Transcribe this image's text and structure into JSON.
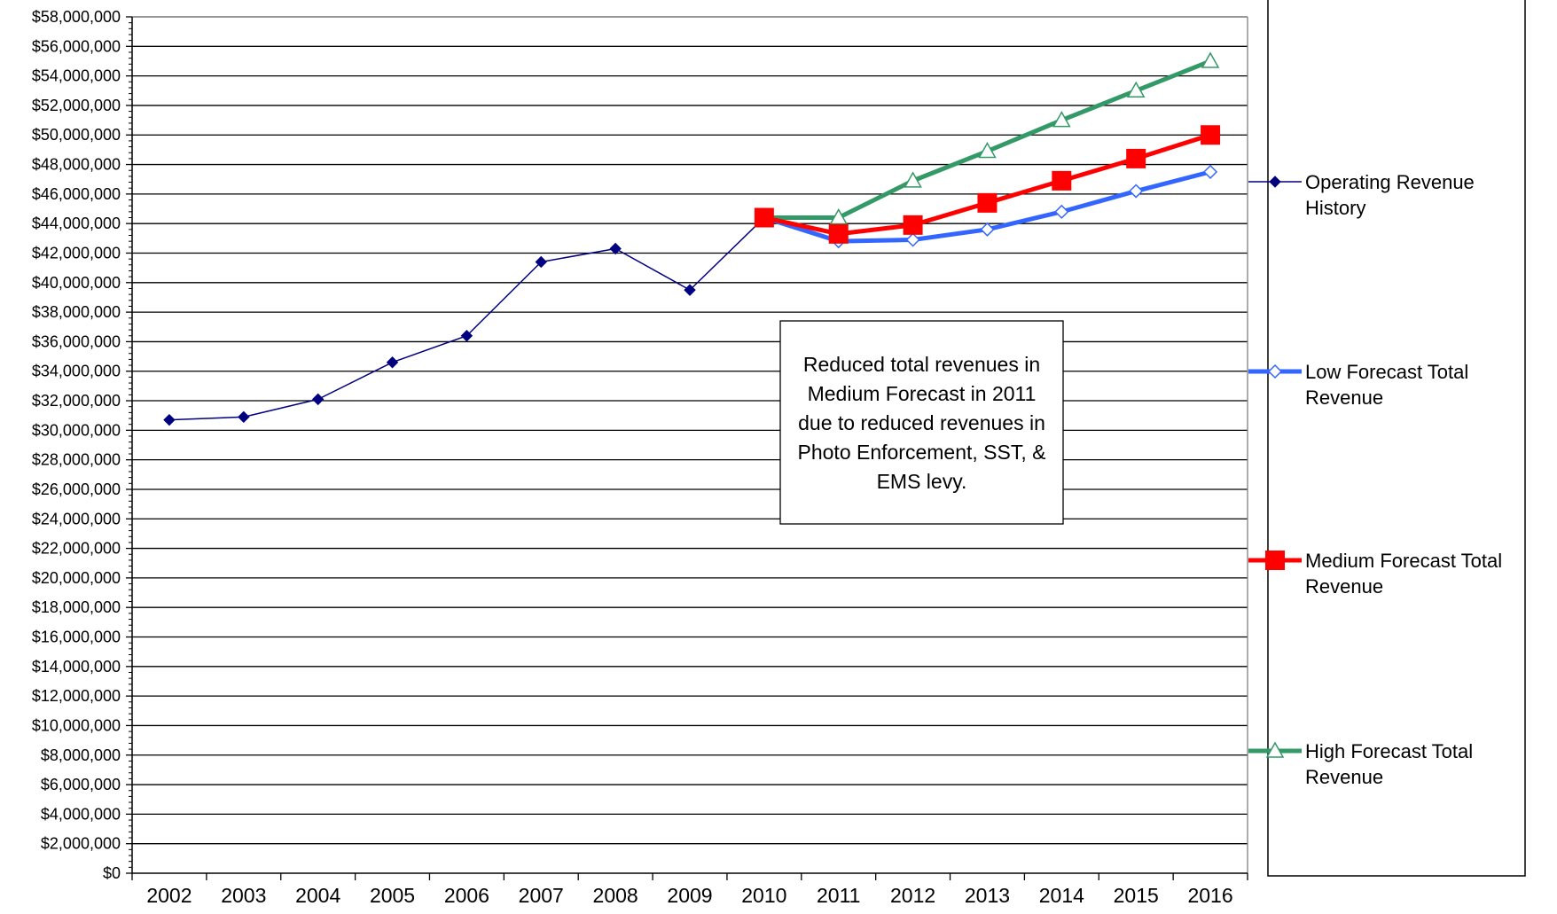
{
  "chart_data": {
    "type": "line",
    "categories": [
      "2002",
      "2003",
      "2004",
      "2005",
      "2006",
      "2007",
      "2008",
      "2009",
      "2010",
      "2011",
      "2012",
      "2013",
      "2014",
      "2015",
      "2016"
    ],
    "ylim": [
      0,
      58000000
    ],
    "y_tick_step": 2000000,
    "y_tick_labels": [
      "$0",
      "$2,000,000",
      "$4,000,000",
      "$6,000,000",
      "$8,000,000",
      "$10,000,000",
      "$12,000,000",
      "$14,000,000",
      "$16,000,000",
      "$18,000,000",
      "$20,000,000",
      "$22,000,000",
      "$24,000,000",
      "$26,000,000",
      "$28,000,000",
      "$30,000,000",
      "$32,000,000",
      "$34,000,000",
      "$36,000,000",
      "$38,000,000",
      "$40,000,000",
      "$42,000,000",
      "$44,000,000",
      "$46,000,000",
      "$48,000,000",
      "$50,000,000",
      "$52,000,000",
      "$54,000,000",
      "$56,000,000",
      "$58,000,000"
    ],
    "grid": true,
    "legend_position": "right",
    "legend_title_partial": "Forecast",
    "series": [
      {
        "name": "Operating Revenue History",
        "color": "#000080",
        "marker": "diamond-filled",
        "values": [
          30700000,
          30900000,
          32100000,
          34600000,
          36400000,
          41400000,
          42300000,
          39500000,
          44400000,
          null,
          null,
          null,
          null,
          null,
          null
        ]
      },
      {
        "name": "Low Forecast Total Revenue",
        "color": "#3366ff",
        "marker": "diamond-open",
        "values": [
          null,
          null,
          null,
          null,
          null,
          null,
          null,
          null,
          44400000,
          42800000,
          42900000,
          43600000,
          44800000,
          46200000,
          47500000
        ]
      },
      {
        "name": "Medium Forecast Total Revenue",
        "color": "#ff0000",
        "marker": "square-filled",
        "values": [
          null,
          null,
          null,
          null,
          null,
          null,
          null,
          null,
          44400000,
          43300000,
          43900000,
          45400000,
          46900000,
          48400000,
          50000000
        ]
      },
      {
        "name": "High Forecast Total Revenue",
        "color": "#339966",
        "marker": "triangle-open",
        "values": [
          null,
          null,
          null,
          null,
          null,
          null,
          null,
          null,
          44400000,
          44400000,
          46900000,
          48900000,
          51000000,
          53000000,
          55000000
        ]
      }
    ],
    "annotation": "Reduced total revenues in Medium Forecast in 2011 due to reduced revenues in Photo Enforcement, SST, & EMS levy."
  }
}
